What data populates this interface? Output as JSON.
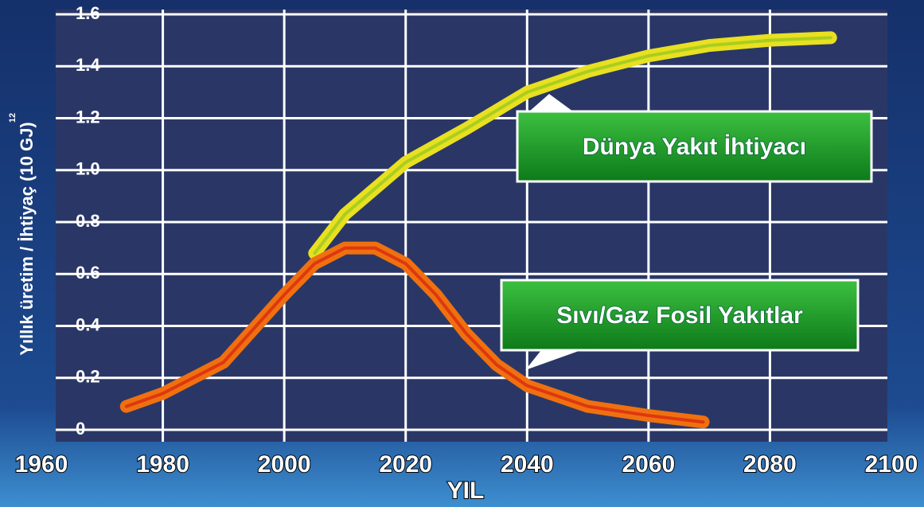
{
  "chart_data": {
    "type": "line",
    "ylabel": "Yıllık üretim / İhtiyaç  (10 GJ)",
    "ylabel_exponent": "12",
    "xlabel": "YIL",
    "xlim": [
      1960,
      2100
    ],
    "xticks": [
      1960,
      1980,
      2000,
      2020,
      2040,
      2060,
      2080,
      2100
    ],
    "ylim": [
      0,
      1.6
    ],
    "yticks": [
      0,
      0.2,
      0.4,
      0.6,
      0.8,
      {
        "value": 1,
        "label": "1.0"
      },
      1.2,
      1.4,
      1.6
    ],
    "grid": true,
    "series": [
      {
        "name": "Dünya Yakıt İhtiyacı",
        "color": "#e8e020",
        "x": [
          2005,
          2010,
          2020,
          2030,
          2040,
          2050,
          2060,
          2070,
          2080,
          2090
        ],
        "values": [
          0.68,
          0.83,
          1.03,
          1.16,
          1.3,
          1.38,
          1.44,
          1.48,
          1.5,
          1.51
        ]
      },
      {
        "name": "Sıvı/Gaz Fosil Yakıtlar",
        "color": "#f07010",
        "x": [
          1974,
          1980,
          1990,
          2000,
          2005,
          2010,
          2015,
          2020,
          2025,
          2030,
          2035,
          2040,
          2050,
          2060,
          2069
        ],
        "values": [
          0.09,
          0.14,
          0.26,
          0.52,
          0.64,
          0.7,
          0.7,
          0.64,
          0.52,
          0.37,
          0.25,
          0.17,
          0.09,
          0.055,
          0.03
        ]
      }
    ]
  }
}
